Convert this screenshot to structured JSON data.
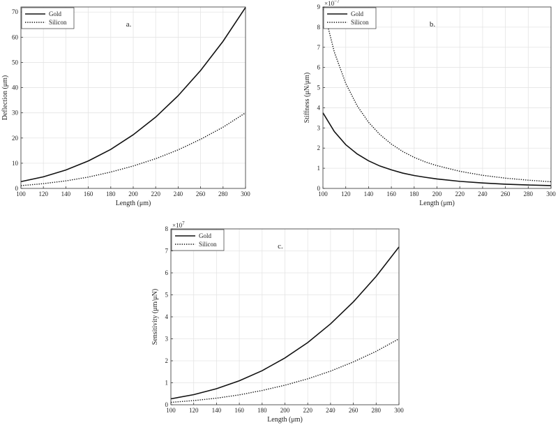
{
  "chart_data": [
    {
      "type": "line",
      "panel_label": "a.",
      "xlabel": "Length (μm)",
      "ylabel": "Deflection (μm)",
      "xlim": [
        100,
        300
      ],
      "ylim": [
        0,
        72
      ],
      "xticks": [
        100,
        120,
        140,
        160,
        180,
        200,
        220,
        240,
        260,
        280,
        300
      ],
      "yticks": [
        0,
        10,
        20,
        30,
        40,
        50,
        60,
        70
      ],
      "exponent_label": "",
      "grid": true,
      "legend": "top-left",
      "x": [
        100,
        120,
        140,
        160,
        180,
        200,
        220,
        240,
        260,
        280,
        300
      ],
      "series": [
        {
          "name": "Gold",
          "style": "solid",
          "values": [
            2.7,
            4.6,
            7.3,
            10.9,
            15.5,
            21.3,
            28.3,
            36.8,
            46.8,
            58.4,
            71.8
          ]
        },
        {
          "name": "Silicon",
          "style": "dotted",
          "values": [
            1.1,
            1.9,
            3.0,
            4.5,
            6.5,
            8.9,
            11.8,
            15.3,
            19.5,
            24.3,
            30.0
          ]
        }
      ]
    },
    {
      "type": "line",
      "panel_label": "b.",
      "xlabel": "Length (μm)",
      "ylabel": "Stiffness (μN/μm)",
      "xlim": [
        100,
        300
      ],
      "ylim": [
        0,
        9
      ],
      "xticks": [
        100,
        120,
        140,
        160,
        180,
        200,
        220,
        240,
        260,
        280,
        300
      ],
      "yticks": [
        0,
        1,
        2,
        3,
        4,
        5,
        6,
        7,
        8,
        9
      ],
      "exponent_label": "×10",
      "exponent_power": "−7",
      "grid": true,
      "legend": "top-left",
      "x": [
        100,
        110,
        120,
        130,
        140,
        150,
        160,
        170,
        180,
        190,
        200,
        220,
        240,
        260,
        280,
        300
      ],
      "series": [
        {
          "name": "Gold",
          "style": "solid",
          "values": [
            3.75,
            2.82,
            2.17,
            1.71,
            1.37,
            1.11,
            0.92,
            0.76,
            0.64,
            0.55,
            0.47,
            0.35,
            0.27,
            0.21,
            0.17,
            0.14
          ]
        },
        {
          "name": "Silicon",
          "style": "dotted",
          "values": [
            9.0,
            6.76,
            5.21,
            4.1,
            3.28,
            2.67,
            2.2,
            1.83,
            1.54,
            1.31,
            1.13,
            0.85,
            0.65,
            0.51,
            0.41,
            0.33
          ]
        }
      ]
    },
    {
      "type": "line",
      "panel_label": "c.",
      "xlabel": "Length (μm)",
      "ylabel": "Sensitivity (μm/μN)",
      "xlim": [
        100,
        300
      ],
      "ylim": [
        0,
        8
      ],
      "xticks": [
        100,
        120,
        140,
        160,
        180,
        200,
        220,
        240,
        260,
        280,
        300
      ],
      "yticks": [
        0,
        1,
        2,
        3,
        4,
        5,
        6,
        7,
        8
      ],
      "exponent_label": "×10",
      "exponent_power": "7",
      "grid": true,
      "legend": "top-left",
      "x": [
        100,
        120,
        140,
        160,
        180,
        200,
        220,
        240,
        260,
        280,
        300
      ],
      "series": [
        {
          "name": "Gold",
          "style": "solid",
          "values": [
            0.27,
            0.46,
            0.73,
            1.09,
            1.55,
            2.13,
            2.83,
            3.68,
            4.68,
            5.84,
            7.18
          ]
        },
        {
          "name": "Silicon",
          "style": "dotted",
          "values": [
            0.11,
            0.19,
            0.3,
            0.45,
            0.65,
            0.89,
            1.18,
            1.53,
            1.95,
            2.43,
            3.0
          ]
        }
      ]
    }
  ]
}
